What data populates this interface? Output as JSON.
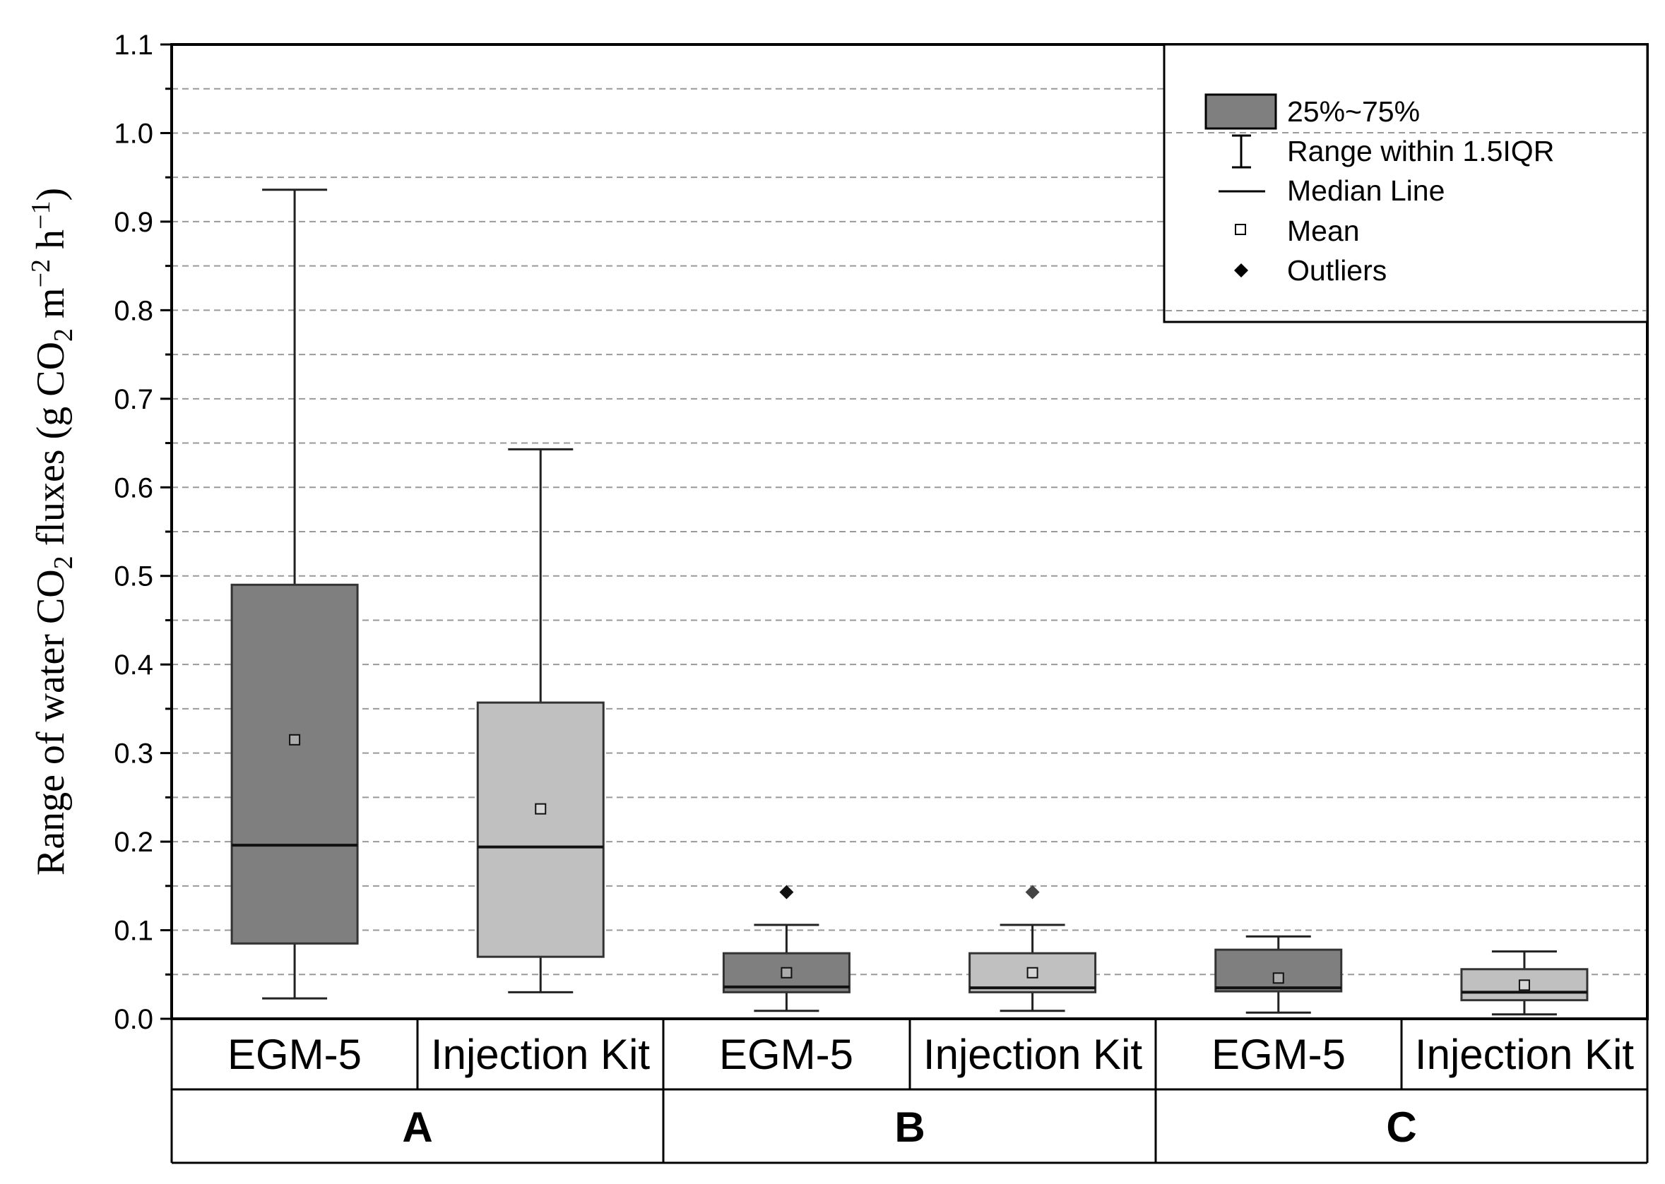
{
  "chart_data": {
    "type": "box",
    "ylabel": {
      "prefix": "Range of water CO",
      "sub": "2",
      "middle": " fluxes (g CO",
      "sub2": "2",
      "unit1": " m",
      "sup1": "−2",
      "unit2": " h",
      "sup2": "−1",
      "suffix": ")"
    },
    "ylim": [
      0.0,
      1.1
    ],
    "yticks": [
      "0.0",
      "0.1",
      "0.2",
      "0.3",
      "0.4",
      "0.5",
      "0.6",
      "0.7",
      "0.8",
      "0.9",
      "1.0",
      "1.1"
    ],
    "grid": "dashed horizontal",
    "groups": [
      "A",
      "B",
      "C"
    ],
    "categories": [
      "EGM-5",
      "Injection Kit",
      "EGM-5",
      "Injection Kit",
      "EGM-5",
      "Injection Kit"
    ],
    "boxes": [
      {
        "group": "A",
        "name": "EGM-5",
        "min": 0.023,
        "q1": 0.085,
        "median": 0.196,
        "q3": 0.49,
        "max": 0.936,
        "mean": 0.315,
        "outliers": [],
        "color": "#7f7f7f"
      },
      {
        "group": "A",
        "name": "Injection Kit",
        "min": 0.03,
        "q1": 0.07,
        "median": 0.194,
        "q3": 0.357,
        "max": 0.643,
        "mean": 0.237,
        "outliers": [],
        "color": "#c0c0c0"
      },
      {
        "group": "B",
        "name": "EGM-5",
        "min": 0.009,
        "q1": 0.03,
        "median": 0.036,
        "q3": 0.074,
        "max": 0.106,
        "mean": 0.052,
        "outliers": [
          0.143
        ],
        "color": "#7f7f7f"
      },
      {
        "group": "B",
        "name": "Injection Kit",
        "min": 0.009,
        "q1": 0.03,
        "median": 0.035,
        "q3": 0.074,
        "max": 0.106,
        "mean": 0.052,
        "outliers": [
          0.143
        ],
        "color": "#c0c0c0"
      },
      {
        "group": "C",
        "name": "EGM-5",
        "min": 0.007,
        "q1": 0.031,
        "median": 0.035,
        "q3": 0.078,
        "max": 0.093,
        "mean": 0.046,
        "outliers": [],
        "color": "#7f7f7f"
      },
      {
        "group": "C",
        "name": "Injection Kit",
        "min": 0.005,
        "q1": 0.021,
        "median": 0.03,
        "q3": 0.056,
        "max": 0.076,
        "mean": 0.038,
        "outliers": [],
        "color": "#c0c0c0"
      }
    ],
    "legend": {
      "placement": "top-right",
      "items": [
        "25%~75%",
        "Range within 1.5IQR",
        "Median Line",
        "Mean",
        "Outliers"
      ]
    }
  },
  "colors": {
    "dark_box": "#7f7f7f",
    "light_box": "#c0c0c0",
    "grid": "#999999",
    "axis": "#000000"
  }
}
